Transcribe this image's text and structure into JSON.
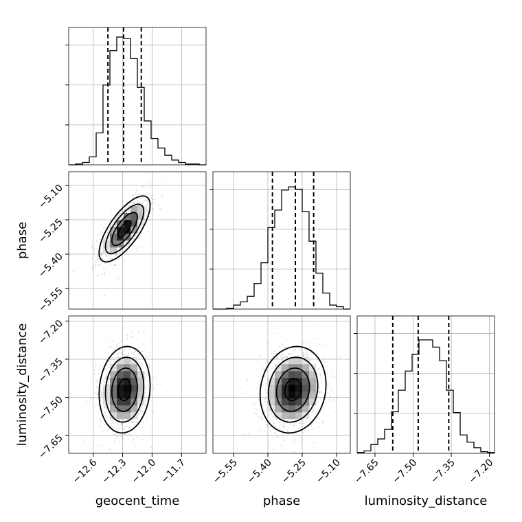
{
  "chart_data": {
    "type": "corner",
    "parameters": [
      {
        "name": "geocent_time",
        "range": [
          -12.85,
          -11.45
        ],
        "ticks": [
          -12.6,
          -12.3,
          -12.0,
          -11.7
        ],
        "tick_labels": [
          "−12.6",
          "−12.3",
          "−12.0",
          "−11.7"
        ],
        "quantiles": [
          -12.45,
          -12.29,
          -12.11
        ],
        "hist_bins": [
          -12.85,
          -12.78,
          -12.71,
          -12.64,
          -12.57,
          -12.5,
          -12.43,
          -12.36,
          -12.29,
          -12.22,
          -12.15,
          -12.08,
          -12.01,
          -11.94,
          -11.87,
          -11.8,
          -11.73,
          -11.66,
          -11.59,
          -11.52,
          -11.45
        ],
        "hist_counts": [
          0,
          1,
          3,
          10,
          40,
          100,
          143,
          160,
          158,
          133,
          97,
          55,
          33,
          21,
          12,
          6,
          3,
          1,
          1,
          0
        ],
        "hist_ymax": 172
      },
      {
        "name": "phase",
        "range": [
          -5.64,
          -5.04
        ],
        "ticks": [
          -5.55,
          -5.4,
          -5.25,
          -5.1
        ],
        "tick_labels": [
          "−5.55",
          "−5.40",
          "−5.25",
          "−5.10"
        ],
        "quantiles": [
          -5.38,
          -5.28,
          -5.2
        ],
        "hist_bins": [
          -5.64,
          -5.61,
          -5.58,
          -5.55,
          -5.52,
          -5.49,
          -5.46,
          -5.43,
          -5.4,
          -5.37,
          -5.34,
          -5.31,
          -5.28,
          -5.25,
          -5.22,
          -5.19,
          -5.16,
          -5.13,
          -5.1,
          -5.07,
          -5.04
        ],
        "hist_counts": [
          0,
          0,
          1,
          5,
          9,
          16,
          32,
          58,
          102,
          124,
          149,
          153,
          150,
          122,
          85,
          45,
          20,
          5,
          3,
          0
        ],
        "hist_ymax": 172
      },
      {
        "name": "luminosity_distance",
        "range": [
          -7.72,
          -7.18
        ],
        "ticks": [
          -7.65,
          -7.5,
          -7.35,
          -7.2
        ],
        "tick_labels": [
          "−7.65",
          "−7.50",
          "−7.35",
          "−7.20"
        ],
        "quantiles": [
          -7.58,
          -7.48,
          -7.36
        ],
        "hist_bins": [
          -7.72,
          -7.693,
          -7.666,
          -7.639,
          -7.612,
          -7.585,
          -7.558,
          -7.531,
          -7.504,
          -7.477,
          -7.45,
          -7.423,
          -7.396,
          -7.369,
          -7.342,
          -7.315,
          -7.288,
          -7.261,
          -7.234,
          -7.207,
          -7.18
        ],
        "hist_counts": [
          1,
          3,
          11,
          18,
          30,
          52,
          79,
          103,
          124,
          142,
          142,
          133,
          116,
          79,
          51,
          23,
          14,
          7,
          2,
          1
        ],
        "hist_ymax": 172
      }
    ],
    "pairs": [
      {
        "x": "geocent_time",
        "y": "phase",
        "mean": [
          -12.28,
          -5.29
        ],
        "std": [
          0.13,
          0.072
        ],
        "corr": 0.72
      },
      {
        "x": "geocent_time",
        "y": "luminosity_distance",
        "mean": [
          -12.28,
          -7.47
        ],
        "std": [
          0.13,
          0.085
        ],
        "corr": 0.1
      },
      {
        "x": "phase",
        "y": "luminosity_distance",
        "mean": [
          -5.29,
          -7.47
        ],
        "std": [
          0.072,
          0.085
        ],
        "corr": 0.12
      }
    ],
    "contour_levels_sigma": [
      0.5,
      1.0,
      1.5,
      2.0
    ],
    "grid": true,
    "colors": {
      "line": "#000000",
      "grid": "#b0b0b0",
      "points": "#8c8c8c"
    }
  }
}
